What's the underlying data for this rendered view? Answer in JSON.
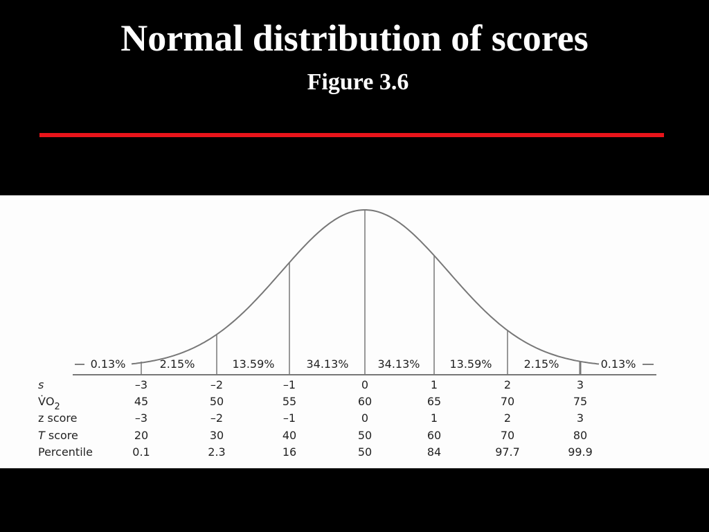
{
  "header": {
    "title": "Normal distribution of scores",
    "subtitle": "Figure 3.6"
  },
  "figure": {
    "segments": [
      "0.13%",
      "2.15%",
      "13.59%",
      "34.13%",
      "34.13%",
      "13.59%",
      "2.15%",
      "0.13%"
    ],
    "rows": [
      {
        "label": "s",
        "values": [
          "–3",
          "–2",
          "–1",
          "0",
          "1",
          "2",
          "3"
        ]
      },
      {
        "label": "V̇O",
        "sub": "2",
        "values": [
          "45",
          "50",
          "55",
          "60",
          "65",
          "70",
          "75"
        ]
      },
      {
        "label": "z score",
        "values": [
          "–3",
          "–2",
          "–1",
          "0",
          "1",
          "2",
          "3"
        ]
      },
      {
        "label": "T",
        "label_rest": " score",
        "values": [
          "20",
          "30",
          "40",
          "50",
          "60",
          "70",
          "80"
        ]
      },
      {
        "label": "Percentile",
        "values": [
          "0.1",
          "2.3",
          "16",
          "50",
          "84",
          "97.7",
          "99.9"
        ]
      }
    ]
  }
}
